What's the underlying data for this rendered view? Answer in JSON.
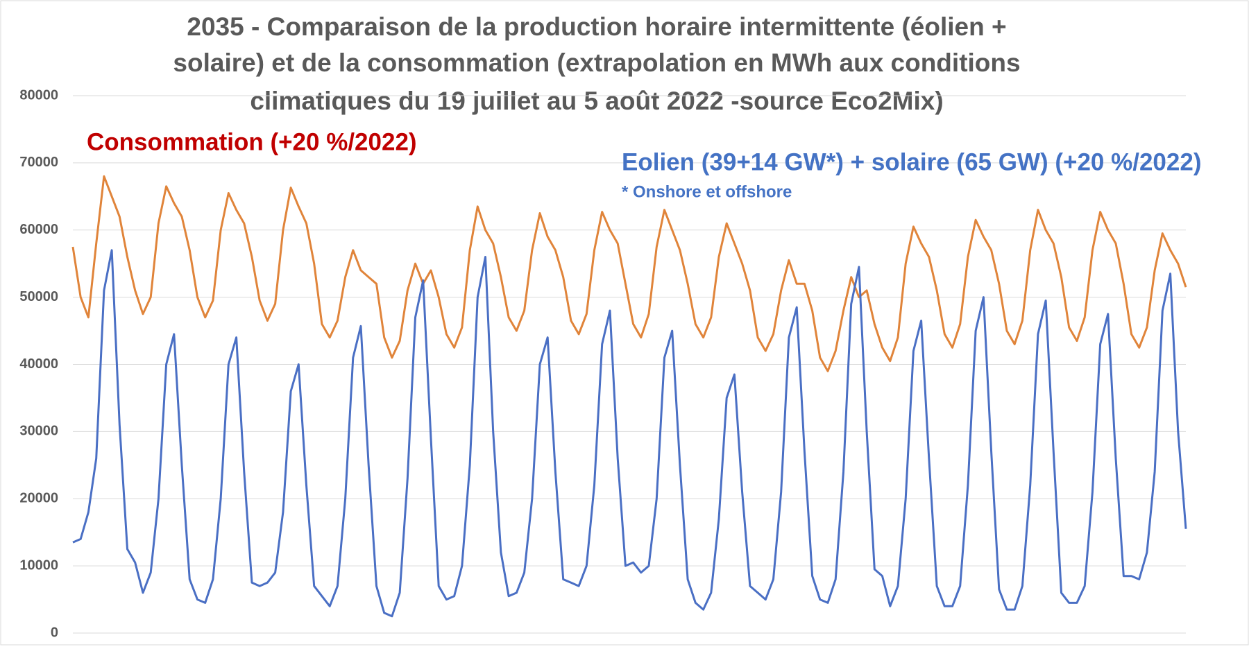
{
  "chart_data": {
    "type": "line",
    "title": [
      "2035 - Comparaison de la production horaire intermittente (éolien +",
      "solaire) et de la consommation (extrapolation en MWh aux conditions",
      "climatiques du 19 juillet au 5 août 2022 -source Eco2Mix)"
    ],
    "annotations": [
      {
        "text": "Consommation (+20 %/2022)",
        "color": "#c00000"
      },
      {
        "text": "Eolien (39+14 GW*) + solaire (65 GW) (+20 %/2022)",
        "color": "#4472c4"
      },
      {
        "text": "* Onshore et offshore",
        "color": "#4472c4"
      }
    ],
    "ylim": [
      0,
      80000
    ],
    "yticks": [
      0,
      10000,
      20000,
      30000,
      40000,
      50000,
      60000,
      70000,
      80000
    ],
    "grid": true,
    "series": [
      {
        "color": "#e0843a",
        "values": [
          57500,
          50000,
          47000,
          58000,
          68000,
          65000,
          62000,
          56000,
          51000,
          47500,
          50000,
          61000,
          66500,
          64000,
          62000,
          57000,
          50000,
          47000,
          49500,
          60000,
          65500,
          63000,
          61000,
          56000,
          49500,
          46500,
          49000,
          60000,
          66300,
          63500,
          61000,
          55000,
          46000,
          44000,
          46500,
          53000,
          57000,
          54000,
          53000,
          52000,
          44000,
          41000,
          43500,
          51000,
          55000,
          52000,
          54000,
          50000,
          44500,
          42500,
          45500,
          57000,
          63500,
          60000,
          58000,
          53000,
          47000,
          45000,
          48000,
          57000,
          62500,
          59000,
          57000,
          53000,
          46500,
          44500,
          47500,
          57000,
          62700,
          60000,
          58000,
          52000,
          46000,
          44000,
          47500,
          57500,
          63000,
          60000,
          57000,
          52000,
          46000,
          44000,
          47000,
          56000,
          61000,
          58000,
          55000,
          51000,
          44000,
          42000,
          44500,
          51000,
          55500,
          52000,
          52000,
          48000,
          41000,
          39000,
          42000,
          48000,
          53000,
          50000,
          51000,
          46000,
          42500,
          40500,
          44000,
          55000,
          60500,
          58000,
          56000,
          51000,
          44500,
          42500,
          46000,
          56000,
          61500,
          59000,
          57000,
          52000,
          45000,
          43000,
          46500,
          57000,
          63000,
          60000,
          58000,
          53000,
          45500,
          43500,
          47000,
          57000,
          62700,
          60000,
          58000,
          52000,
          44500,
          42500,
          45500,
          54000,
          59500,
          57000,
          55000,
          51500
        ]
      },
      {
        "color": "#4a6fc4",
        "values": [
          13500,
          14000,
          18000,
          26000,
          51000,
          57000,
          31000,
          12500,
          10500,
          6000,
          9000,
          20000,
          40000,
          44500,
          25000,
          8000,
          5000,
          4500,
          8000,
          20000,
          40000,
          44000,
          24000,
          7500,
          7000,
          7500,
          9000,
          18000,
          36000,
          40000,
          22000,
          7000,
          5500,
          4000,
          7000,
          20000,
          41000,
          45700,
          25000,
          7000,
          3000,
          2500,
          6000,
          23000,
          47000,
          52500,
          29000,
          7000,
          5000,
          5500,
          10000,
          25000,
          50000,
          56000,
          30000,
          12000,
          5500,
          6000,
          9000,
          20000,
          40000,
          44000,
          24000,
          8000,
          7500,
          7000,
          10000,
          22000,
          43000,
          48000,
          26000,
          10000,
          10500,
          9000,
          10000,
          20000,
          41000,
          45000,
          25000,
          8000,
          4500,
          3500,
          6000,
          17000,
          35000,
          38500,
          21000,
          7000,
          6000,
          5000,
          8000,
          21000,
          44000,
          48500,
          27000,
          8500,
          5000,
          4500,
          8000,
          24000,
          49000,
          54500,
          30000,
          9500,
          8500,
          4000,
          7000,
          20000,
          42000,
          46500,
          26000,
          7000,
          4000,
          4000,
          7000,
          22000,
          45000,
          50000,
          27000,
          6500,
          3500,
          3500,
          7000,
          22000,
          44500,
          49500,
          27000,
          6000,
          4500,
          4500,
          7000,
          21000,
          43000,
          47500,
          26000,
          8500,
          8500,
          8000,
          12000,
          24000,
          48000,
          53500,
          30000,
          15500
        ]
      }
    ]
  }
}
